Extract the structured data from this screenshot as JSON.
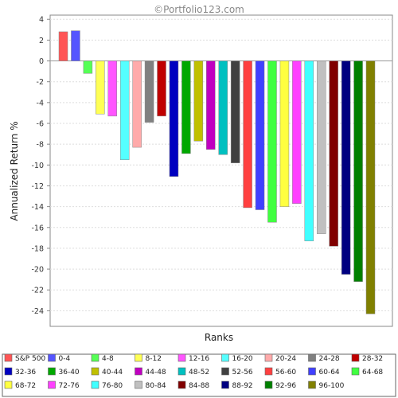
{
  "chart_data": {
    "type": "bar",
    "title": "©Portfolio123.com",
    "xlabel": "Ranks",
    "ylabel": "Annualized Return %",
    "ylim": [
      -25.5,
      4.4
    ],
    "yticks": [
      4,
      2,
      0,
      -2,
      -4,
      -6,
      -8,
      -10,
      -12,
      -14,
      -16,
      -18,
      -20,
      -22,
      -24
    ],
    "grid": true,
    "legend_position": "bottom",
    "categories": [
      "S&P 500",
      "0-4",
      "4-8",
      "8-12",
      "12-16",
      "16-20",
      "20-24",
      "24-28",
      "28-32",
      "32-36",
      "36-40",
      "40-44",
      "44-48",
      "48-52",
      "52-56",
      "56-60",
      "60-64",
      "64-68",
      "68-72",
      "72-76",
      "76-80",
      "80-84",
      "84-88",
      "88-92",
      "92-96",
      "96-100"
    ],
    "values": [
      2.8,
      2.9,
      -1.2,
      -5.1,
      -5.3,
      -9.5,
      -8.3,
      -5.9,
      -5.3,
      -11.1,
      -8.9,
      -7.7,
      -8.5,
      -9.0,
      -9.8,
      -14.1,
      -14.3,
      -15.5,
      -14.0,
      -13.7,
      -17.3,
      -16.6,
      -17.8,
      -20.5,
      -21.2,
      -24.3
    ],
    "colors": [
      "#ff5555",
      "#5555ff",
      "#55ff55",
      "#ffff55",
      "#ff55ff",
      "#55ffff",
      "#ffaaaa",
      "#808080",
      "#c00000",
      "#0000c0",
      "#00a800",
      "#c0c000",
      "#c000c0",
      "#00c0c0",
      "#404040",
      "#ff4040",
      "#4040ff",
      "#40ff40",
      "#ffff40",
      "#ff40ff",
      "#40ffff",
      "#c0c0c0",
      "#800000",
      "#000080",
      "#008000",
      "#808000"
    ]
  }
}
